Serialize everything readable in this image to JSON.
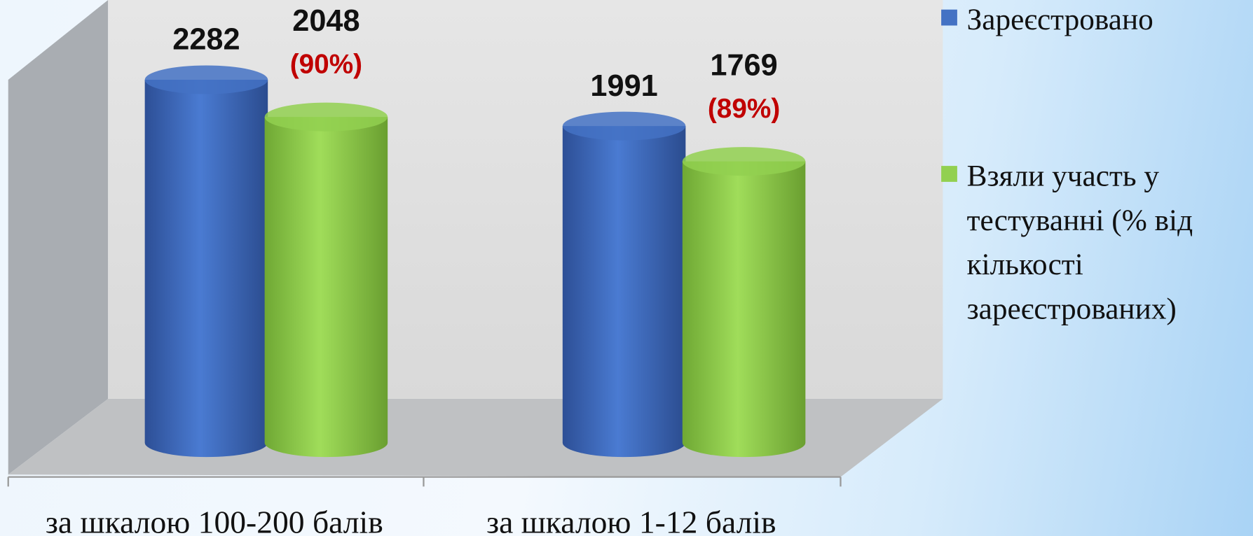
{
  "chart_data": {
    "type": "bar3d",
    "categories": [
      "за шкалою 100-200 балів",
      "за шкалою 1-12 балів"
    ],
    "series": [
      {
        "name": "Зареєстровано",
        "color": "#4472c4",
        "values": [
          2282,
          1991
        ]
      },
      {
        "name": "Взяли участь у тестуванні (% від кількості зареєстрованих)",
        "color": "#92d050",
        "values": [
          2048,
          1769
        ],
        "percent_labels": [
          "(90%)",
          "(89%)"
        ]
      }
    ],
    "legend": "right"
  }
}
